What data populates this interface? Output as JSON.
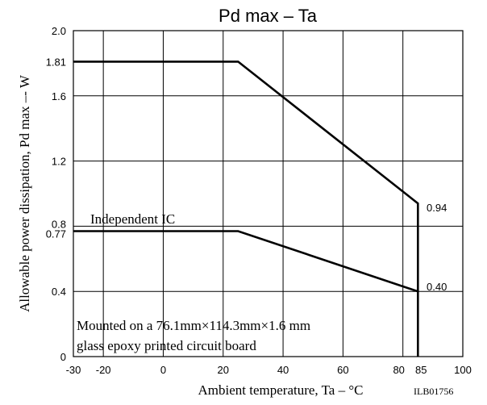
{
  "chart_data": {
    "type": "line",
    "title": "Pd max – Ta",
    "xlabel": "Ambient temperature, Ta – °C",
    "ylabel": "Allowable power dissipation, Pd max –- W",
    "xlim": [
      -30,
      100
    ],
    "ylim": [
      0,
      2.0
    ],
    "x_ticks": [
      -30,
      -20,
      0,
      20,
      40,
      60,
      80,
      85,
      100
    ],
    "x_tick_labels": [
      "-30",
      "-20",
      "0",
      "20",
      "40",
      "60",
      "80",
      "85",
      "100"
    ],
    "x_grid": [
      -20,
      0,
      20,
      40,
      60,
      80
    ],
    "y_ticks": [
      0,
      0.4,
      0.77,
      0.8,
      1.2,
      1.6,
      1.81,
      2.0
    ],
    "y_tick_labels": [
      "0",
      "0.4",
      "0.77",
      "0.8",
      "1.2",
      "1.6",
      "1.81",
      "2.0"
    ],
    "y_grid": [
      0.4,
      0.8,
      1.2,
      1.6
    ],
    "grid": true,
    "series": [
      {
        "name": "",
        "x": [
          -30,
          25,
          85,
          85
        ],
        "y": [
          1.81,
          1.81,
          0.94,
          0
        ],
        "end_label": "0.94"
      },
      {
        "name": "Independent IC",
        "x": [
          -30,
          25,
          85
        ],
        "y": [
          0.77,
          0.77,
          0.4
        ],
        "end_label": "0.40"
      }
    ],
    "annotations": [
      "Mounted on a 76.1mm×114.3mm×1.6 mm",
      "glass epoxy printed circuit board"
    ],
    "code": "ILB01756"
  }
}
